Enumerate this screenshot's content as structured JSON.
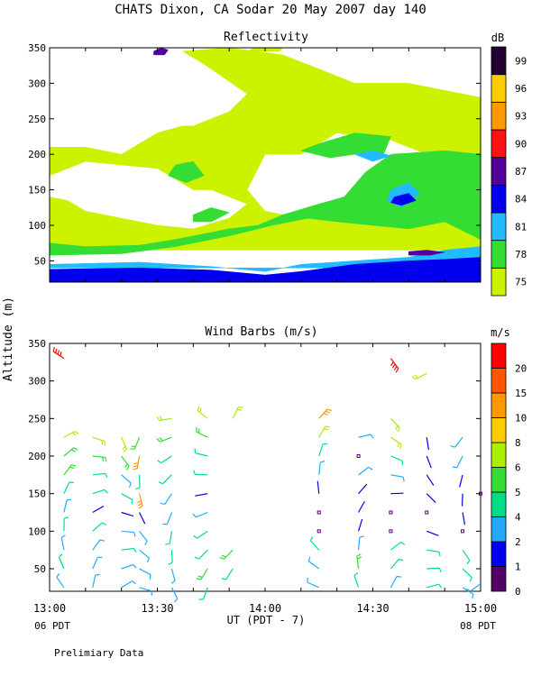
{
  "figure": {
    "title": "CHATS Dixon, CA  Sodar  20 May 2007  day 140",
    "shared_ylabel": "Altitude (m)",
    "xlabel": "UT  (PDT - 7)",
    "xticks": [
      "13:00",
      "13:30",
      "14:00",
      "14:30",
      "15:00"
    ],
    "x_start_note": "06 PDT",
    "x_end_note": "08 PDT",
    "footnote": "Prelimiary Data"
  },
  "chart_data": [
    {
      "type": "heatmap",
      "title": "Reflectivity",
      "xlabel": "UT  (PDT - 7)",
      "ylabel": "Altitude (m)",
      "x_range": [
        0,
        120
      ],
      "x_unit": "minutes after 13:00 UT",
      "ylim": [
        20,
        350
      ],
      "yticks": [
        50,
        100,
        150,
        200,
        250,
        300,
        350
      ],
      "grid": false,
      "colorbar": {
        "unit": "dB",
        "levels": [
          75,
          78,
          81,
          84,
          87,
          90,
          93,
          96,
          99
        ],
        "colors": [
          "#ccf200",
          "#33dd33",
          "#22bbff",
          "#0000ee",
          "#55009a",
          "#ff1111",
          "#ff9900",
          "#ffcc00",
          "#220033"
        ]
      },
      "background_below_75": "#ffffff",
      "regions": [
        {
          "level": 75,
          "points": [
            [
              0,
              65
            ],
            [
              0,
              140
            ],
            [
              5,
              135
            ],
            [
              10,
              120
            ],
            [
              20,
              110
            ],
            [
              30,
              100
            ],
            [
              40,
              95
            ],
            [
              50,
              110
            ],
            [
              55,
              130
            ],
            [
              45,
              150
            ],
            [
              40,
              150
            ],
            [
              30,
              180
            ],
            [
              20,
              185
            ],
            [
              10,
              190
            ],
            [
              0,
              170
            ],
            [
              0,
              210
            ],
            [
              10,
              210
            ],
            [
              20,
              200
            ],
            [
              30,
              230
            ],
            [
              37,
              240
            ],
            [
              40,
              240
            ],
            [
              50,
              260
            ],
            [
              55,
              285
            ],
            [
              45,
              320
            ],
            [
              42,
              330
            ],
            [
              37,
              345
            ],
            [
              50,
              350
            ],
            [
              65,
              340
            ],
            [
              75,
              320
            ],
            [
              85,
              300
            ],
            [
              90,
              300
            ],
            [
              100,
              300
            ],
            [
              110,
              290
            ],
            [
              120,
              280
            ],
            [
              120,
              150
            ],
            [
              110,
              160
            ],
            [
              105,
              200
            ],
            [
              95,
              220
            ],
            [
              80,
              230
            ],
            [
              70,
              200
            ],
            [
              60,
              200
            ],
            [
              55,
              150
            ],
            [
              60,
              120
            ],
            [
              70,
              110
            ],
            [
              80,
              120
            ],
            [
              90,
              100
            ],
            [
              100,
              100
            ],
            [
              110,
              110
            ],
            [
              120,
              120
            ],
            [
              120,
              65
            ]
          ]
        },
        {
          "level": 75,
          "points": [
            [
              55,
              345
            ],
            [
              57,
              350
            ],
            [
              65,
              350
            ],
            [
              64,
              345
            ]
          ]
        },
        {
          "level": 78,
          "points": [
            [
              0,
              40
            ],
            [
              0,
              75
            ],
            [
              10,
              70
            ],
            [
              25,
              72
            ],
            [
              35,
              80
            ],
            [
              50,
              95
            ],
            [
              58,
              100
            ],
            [
              65,
              115
            ],
            [
              75,
              130
            ],
            [
              82,
              140
            ],
            [
              88,
              175
            ],
            [
              95,
              200
            ],
            [
              110,
              205
            ],
            [
              120,
              200
            ],
            [
              120,
              80
            ],
            [
              110,
              105
            ],
            [
              100,
              95
            ],
            [
              90,
              100
            ],
            [
              80,
              105
            ],
            [
              72,
              110
            ],
            [
              62,
              100
            ],
            [
              50,
              85
            ],
            [
              35,
              70
            ],
            [
              20,
              60
            ],
            [
              0,
              58
            ]
          ]
        },
        {
          "level": 78,
          "points": [
            [
              35,
              185
            ],
            [
              40,
              190
            ],
            [
              43,
              170
            ],
            [
              38,
              160
            ],
            [
              33,
              170
            ]
          ]
        },
        {
          "level": 78,
          "points": [
            [
              40,
              115
            ],
            [
              45,
              125
            ],
            [
              50,
              118
            ],
            [
              45,
              105
            ],
            [
              40,
              105
            ]
          ]
        },
        {
          "level": 78,
          "points": [
            [
              70,
              205
            ],
            [
              75,
              215
            ],
            [
              85,
              230
            ],
            [
              95,
              225
            ],
            [
              93,
              200
            ],
            [
              85,
              200
            ],
            [
              78,
              195
            ]
          ]
        },
        {
          "level": 81,
          "points": [
            [
              0,
              40
            ],
            [
              0,
              45
            ],
            [
              25,
              48
            ],
            [
              45,
              42
            ],
            [
              60,
              35
            ],
            [
              70,
              45
            ],
            [
              85,
              50
            ],
            [
              100,
              55
            ],
            [
              110,
              65
            ],
            [
              120,
              70
            ],
            [
              120,
              40
            ]
          ]
        },
        {
          "level": 81,
          "points": [
            [
              85,
              200
            ],
            [
              90,
              205
            ],
            [
              95,
              198
            ],
            [
              90,
              190
            ]
          ]
        },
        {
          "level": 81,
          "points": [
            [
              95,
              150
            ],
            [
              100,
              160
            ],
            [
              103,
              145
            ],
            [
              98,
              125
            ],
            [
              94,
              135
            ]
          ]
        },
        {
          "level": 84,
          "points": [
            [
              0,
              20
            ],
            [
              0,
              38
            ],
            [
              25,
              40
            ],
            [
              45,
              37
            ],
            [
              60,
              30
            ],
            [
              70,
              35
            ],
            [
              85,
              45
            ],
            [
              100,
              50
            ],
            [
              110,
              52
            ],
            [
              120,
              55
            ],
            [
              120,
              20
            ]
          ]
        },
        {
          "level": 84,
          "points": [
            [
              96,
              140
            ],
            [
              100,
              145
            ],
            [
              102,
              135
            ],
            [
              98,
              128
            ],
            [
              95,
              132
            ]
          ]
        },
        {
          "level": 87,
          "points": [
            [
              100,
              63
            ],
            [
              105,
              65
            ],
            [
              110,
              62
            ],
            [
              106,
              58
            ],
            [
              100,
              58
            ]
          ]
        },
        {
          "level": 87,
          "points": [
            [
              29,
              345
            ],
            [
              31,
              350
            ],
            [
              33,
              347
            ],
            [
              32,
              340
            ],
            [
              29,
              340
            ]
          ]
        }
      ]
    },
    {
      "type": "scatter",
      "title": "Wind Barbs (m/s)",
      "xlabel": "UT  (PDT - 7)",
      "ylabel": "Altitude (m)",
      "x_range": [
        0,
        120
      ],
      "x_unit": "minutes after 13:00 UT",
      "ylim": [
        20,
        350
      ],
      "yticks": [
        50,
        100,
        150,
        200,
        250,
        300,
        350
      ],
      "grid": false,
      "colorbar": {
        "unit": "m/s",
        "levels": [
          0,
          1,
          2,
          4,
          5,
          6,
          8,
          10,
          15,
          20
        ],
        "colors": [
          "#550066",
          "#0000ee",
          "#22aaff",
          "#00dd88",
          "#33dd33",
          "#aaee00",
          "#ffcc00",
          "#ff9900",
          "#ff5500",
          "#ff0000"
        ]
      },
      "profiles": [
        {
          "x": 4,
          "alt": [
            25,
            50,
            75,
            100,
            125,
            150,
            175,
            200,
            225
          ],
          "speed": [
            2,
            4,
            3,
            4,
            3,
            4,
            5,
            5,
            6
          ]
        },
        {
          "x": 12,
          "alt": [
            25,
            50,
            75,
            100,
            125,
            150,
            175,
            200,
            225
          ],
          "speed": [
            2,
            3,
            2,
            4,
            1,
            4,
            4,
            5,
            6
          ]
        },
        {
          "x": 20,
          "alt": [
            25,
            50,
            75,
            100,
            125,
            150,
            175,
            200,
            225
          ],
          "speed": [
            2,
            2,
            4,
            2,
            1,
            4,
            3,
            5,
            6
          ]
        },
        {
          "x": 25,
          "alt": [
            25,
            50,
            75,
            100,
            125,
            150,
            175,
            200,
            225
          ],
          "speed": [
            2,
            2,
            3,
            2,
            1,
            10,
            4,
            10,
            5
          ]
        },
        {
          "x": 34,
          "alt": [
            25,
            50,
            75,
            100,
            125,
            150,
            175,
            200,
            225,
            250
          ],
          "speed": [
            3,
            3,
            4,
            4,
            3,
            3,
            4,
            4,
            5,
            6
          ]
        },
        {
          "x": 44,
          "alt": [
            25,
            50,
            75,
            100,
            125,
            150,
            175,
            200,
            225,
            250
          ],
          "speed": [
            4,
            5,
            4,
            4,
            3,
            1,
            4,
            4,
            5,
            6
          ]
        },
        {
          "x": 51,
          "alt": [
            50,
            75,
            250
          ],
          "speed": [
            4,
            5,
            6
          ]
        },
        {
          "x": 75,
          "alt": [
            25,
            50,
            75,
            100,
            125,
            150,
            175,
            200,
            225,
            250
          ],
          "speed": [
            3,
            3,
            4,
            0,
            0,
            1,
            3,
            4,
            6,
            10
          ]
        },
        {
          "x": 86,
          "alt": [
            25,
            50,
            75,
            100,
            125,
            150,
            175,
            200,
            225
          ],
          "speed": [
            4,
            5,
            3,
            1,
            1,
            1,
            2,
            0,
            3
          ]
        },
        {
          "x": 95,
          "alt": [
            25,
            50,
            75,
            100,
            125,
            150,
            175,
            200,
            225,
            250,
            330
          ],
          "speed": [
            3,
            4,
            4,
            0,
            0,
            1,
            3,
            4,
            6,
            6,
            20
          ]
        },
        {
          "x": 105,
          "alt": [
            25,
            50,
            75,
            100,
            125,
            150,
            175,
            200,
            225,
            310
          ],
          "speed": [
            4,
            4,
            4,
            1,
            0,
            1,
            1,
            1,
            1,
            6
          ]
        },
        {
          "x": 115,
          "alt": [
            25,
            50,
            75,
            100,
            125,
            150,
            175,
            200,
            225
          ],
          "speed": [
            3,
            4,
            4,
            0,
            1,
            1,
            1,
            2,
            3
          ]
        },
        {
          "x": 120,
          "alt": [
            30,
            150
          ],
          "speed": [
            3,
            0
          ]
        }
      ],
      "extra_barbs": [
        {
          "x": 4,
          "alt": 330,
          "speed": 20
        }
      ]
    }
  ]
}
